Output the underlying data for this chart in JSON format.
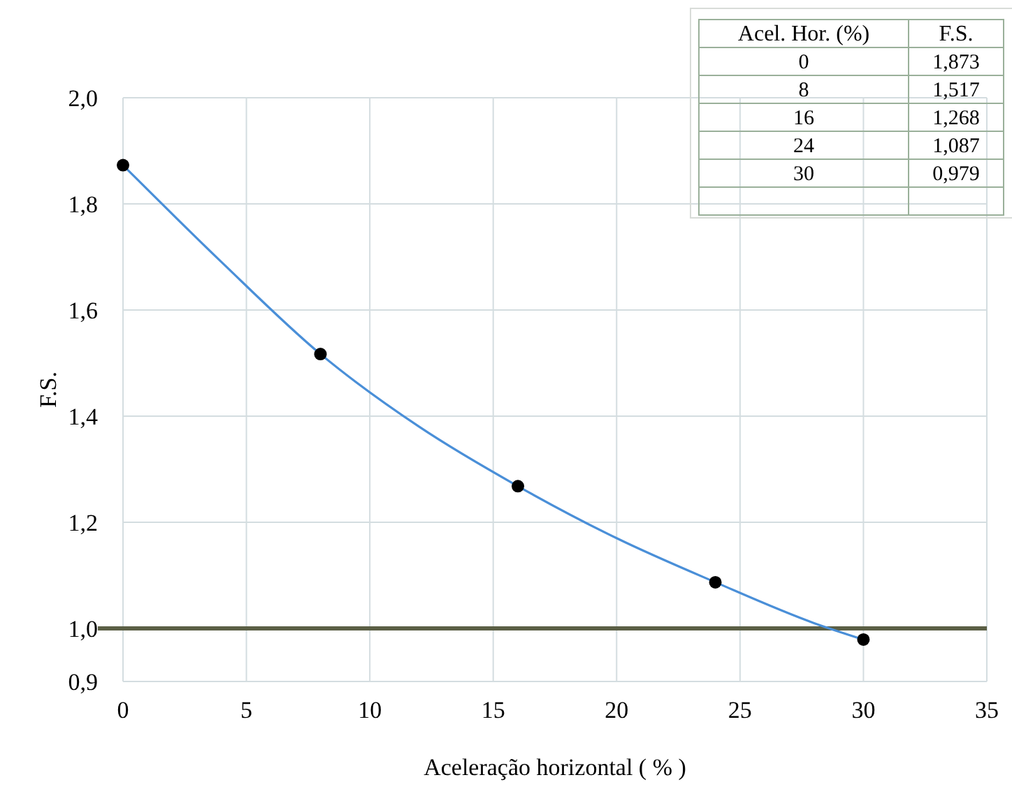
{
  "chart_data": {
    "type": "scatter",
    "xlabel": "Aceleração horizontal ( % )",
    "ylabel": "F.S.",
    "xlim": [
      0,
      35
    ],
    "xticks": [
      0,
      5,
      10,
      15,
      20,
      25,
      30,
      35
    ],
    "ylim": [
      0.9,
      2.0
    ],
    "yticks": [
      {
        "value": 0.9,
        "label": "0,9"
      },
      {
        "value": 1.0,
        "label": "1,0"
      },
      {
        "value": 1.2,
        "label": "1,2"
      },
      {
        "value": 1.4,
        "label": "1,4"
      },
      {
        "value": 1.6,
        "label": "1,6"
      },
      {
        "value": 1.8,
        "label": "1,8"
      },
      {
        "value": 2.0,
        "label": "2,0"
      }
    ],
    "grid": true,
    "marker": "circle",
    "series": [
      {
        "type": "line",
        "marker": "none",
        "color": "#4a8fd8",
        "line_style": "solid",
        "x": [
          0,
          4,
          8,
          12,
          16,
          20,
          24,
          28,
          30
        ],
        "values": [
          1.873,
          1.69,
          1.517,
          1.38,
          1.268,
          1.17,
          1.087,
          1.01,
          0.979
        ]
      },
      {
        "color": "#000000",
        "x": [
          0,
          8,
          16,
          24,
          30
        ],
        "values": [
          1.873,
          1.517,
          1.268,
          1.087,
          0.979
        ]
      }
    ],
    "ref_lines": [
      {
        "axis": "y",
        "value": 1.0,
        "color": "#5b5f45"
      }
    ],
    "annotations": [
      "Acel. Hor. (%)",
      "F.S.",
      "0",
      "1,873",
      "8",
      "1,517",
      "16",
      "1,268",
      "24",
      "1,087",
      "30",
      "0,979"
    ]
  }
}
